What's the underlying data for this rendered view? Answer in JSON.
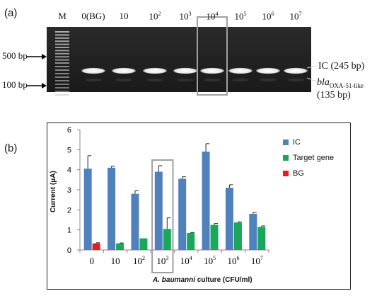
{
  "panel_a": {
    "label": "(a)",
    "lane_labels": [
      "M",
      "0(BG)",
      "10",
      "10",
      "10",
      "10",
      "10",
      "10",
      "10"
    ],
    "lane_exponents": [
      "",
      "",
      "",
      "2",
      "3",
      "4",
      "5",
      "6",
      "7"
    ],
    "ladder_labels": [
      "500 bp",
      "100 bp"
    ],
    "band_ic": "IC (245 bp)",
    "band_target_main": "bla",
    "band_target_sub": "OXA-51-like",
    "band_target_size": "(135 bp)",
    "highlight_color": "#a0a0a0"
  },
  "panel_b": {
    "label": "(b)"
  },
  "chart_data": {
    "type": "bar",
    "categories": [
      "0",
      "10",
      "10",
      "10",
      "10",
      "10",
      "10",
      "10"
    ],
    "category_exponents": [
      "",
      "",
      "2",
      "3",
      "4",
      "5",
      "6",
      "7"
    ],
    "ylabel": "Current (μA)",
    "xlabel_italic": "A. baumanni",
    "xlabel_rest": " culture (CFU/ml)",
    "ylim": [
      0,
      6
    ],
    "yticks": [
      "0",
      "1",
      "2",
      "3",
      "4",
      "5",
      "6"
    ],
    "series": [
      {
        "name": "IC",
        "color": "#4f81bd",
        "values": [
          4.05,
          4.1,
          2.8,
          3.9,
          3.55,
          4.9,
          3.1,
          1.8
        ],
        "errors": [
          0.65,
          0.08,
          0.15,
          0.3,
          0.1,
          0.4,
          0.15,
          0.07
        ]
      },
      {
        "name": "Target gene",
        "color": "#19a85a",
        "values": [
          null,
          0.33,
          0.58,
          1.05,
          0.85,
          1.25,
          1.37,
          1.15
        ],
        "errors": [
          null,
          0.02,
          0.0,
          0.55,
          0.02,
          0.07,
          0.03,
          0.05
        ]
      },
      {
        "name": "BG",
        "color": "#e31e1e",
        "values": [
          0.33,
          null,
          null,
          null,
          null,
          null,
          null,
          null
        ],
        "errors": [
          0.03,
          null,
          null,
          null,
          null,
          null,
          null,
          null
        ]
      }
    ],
    "highlight_category": 3,
    "legend_position": "top-right"
  }
}
